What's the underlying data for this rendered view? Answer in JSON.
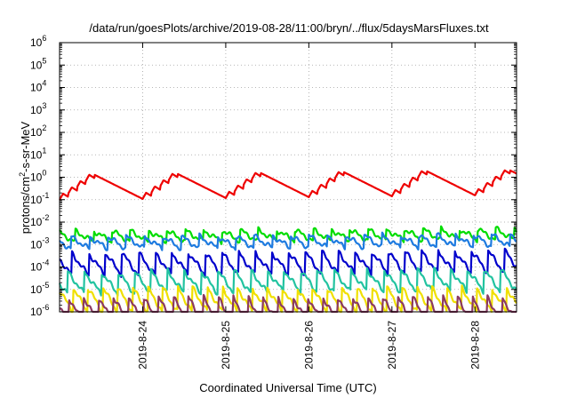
{
  "chart_data": {
    "type": "line",
    "title": "/data/run/goesPlots/archive/2019-08-28/11:00/bryn/../flux/5daysMarsFluxes.txt",
    "xlabel": "Coordinated Universal Time (UTC)",
    "ylabel_parts": [
      "protons/cm",
      "2",
      "-s-sr-MeV"
    ],
    "yscale": "log",
    "ylim": [
      1e-06,
      1000000.0
    ],
    "xlim": [
      0.0,
      5.5
    ],
    "x_units": "days since 2019-08-23 00:00 UTC",
    "y_ticks": [
      {
        "value": 1e-06,
        "base": "10",
        "exp": "-6"
      },
      {
        "value": 1e-05,
        "base": "10",
        "exp": "-5"
      },
      {
        "value": 0.0001,
        "base": "10",
        "exp": "-4"
      },
      {
        "value": 0.001,
        "base": "10",
        "exp": "-3"
      },
      {
        "value": 0.01,
        "base": "10",
        "exp": "-2"
      },
      {
        "value": 0.1,
        "base": "10",
        "exp": "-1"
      },
      {
        "value": 1,
        "base": "10",
        "exp": "0"
      },
      {
        "value": 10,
        "base": "10",
        "exp": "1"
      },
      {
        "value": 100,
        "base": "10",
        "exp": "2"
      },
      {
        "value": 1000,
        "base": "10",
        "exp": "3"
      },
      {
        "value": 10000,
        "base": "10",
        "exp": "4"
      },
      {
        "value": 100000,
        "base": "10",
        "exp": "5"
      },
      {
        "value": 1000000,
        "base": "10",
        "exp": "6"
      }
    ],
    "x_ticks": [
      {
        "value": 1,
        "label": "2019-8-24"
      },
      {
        "value": 2,
        "label": "2019-8-25"
      },
      {
        "value": 3,
        "label": "2019-8-26"
      },
      {
        "value": 4,
        "label": "2019-8-27"
      },
      {
        "value": 5,
        "label": "2019-8-28"
      }
    ],
    "grid": true,
    "series": [
      {
        "color": "#ee0000",
        "pattern": "smooth",
        "base": 0.35,
        "amp_log10": 0.55,
        "period_days": 1,
        "phase": 0.0,
        "drift_log10_per_day": 0.04
      },
      {
        "color": "#00dd00",
        "pattern": "sawtooth",
        "base": 0.004,
        "drop_log10": 0.5,
        "period_days": 0.22,
        "phase": 0.03,
        "drift_log10_per_day": 0.02
      },
      {
        "color": "#1e7be0",
        "pattern": "sawtooth",
        "base": 0.0022,
        "drop_log10": 0.55,
        "period_days": 0.22,
        "phase": 0.08,
        "drift_log10_per_day": 0.02
      },
      {
        "color": "#0000cc",
        "pattern": "sawtooth",
        "base": 0.0004,
        "drop_log10": 1.0,
        "period_days": 0.2,
        "phase": 0.05,
        "drift_log10_per_day": 0.03
      },
      {
        "color": "#22c3a0",
        "pattern": "sawtooth",
        "base": 6e-05,
        "drop_log10": 1.0,
        "period_days": 0.2,
        "phase": 0.1,
        "drift_log10_per_day": 0.03
      },
      {
        "color": "#f0e000",
        "pattern": "sawtooth",
        "base": 1.2e-05,
        "drop_log10": 1.1,
        "period_days": 0.18,
        "phase": 0.02,
        "drift_log10_per_day": 0.0
      },
      {
        "color": "#8b3a62",
        "pattern": "sawtooth",
        "base": 4.5e-06,
        "drop_log10": 1.2,
        "period_days": 0.18,
        "phase": 0.07,
        "drift_log10_per_day": 0.0
      }
    ]
  }
}
